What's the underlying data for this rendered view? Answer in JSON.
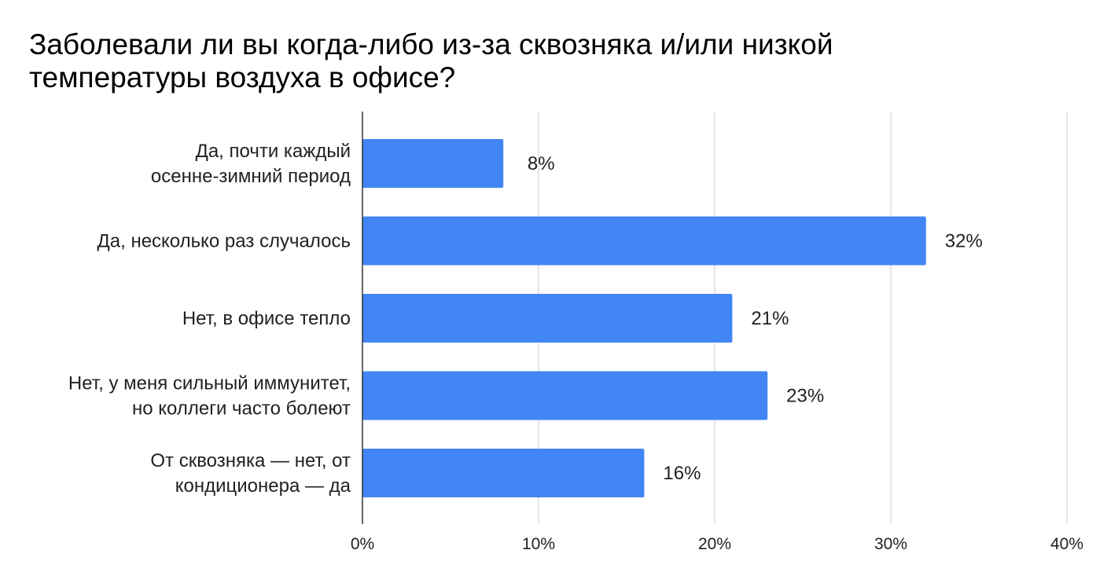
{
  "chart_data": {
    "type": "bar",
    "orientation": "horizontal",
    "title": "Заболевали ли вы когда-либо из-за сквозняка и/или низкой\nтемпературы воздуха в офисе?",
    "categories": [
      "Да, почти каждый\nосенне-зимний период",
      "Да, несколько раз случалось",
      "Нет, в офисе тепло",
      "Нет, у меня сильный иммунитет,\nно коллеги часто болеют",
      "От сквозняка — нет, от\nкондиционера — да"
    ],
    "values": [
      8,
      32,
      21,
      23,
      16
    ],
    "data_labels": [
      "8%",
      "32%",
      "21%",
      "23%",
      "16%"
    ],
    "xlim": [
      0,
      40
    ],
    "x_ticks": [
      0,
      10,
      20,
      30,
      40
    ],
    "x_tick_labels": [
      "0%",
      "10%",
      "20%",
      "30%",
      "40%"
    ],
    "xlabel": "",
    "ylabel": "",
    "grid": true,
    "legend": "none",
    "colors": {
      "bar": "#4285f4",
      "grid": "#cccccc",
      "axis": "#333333",
      "text": "#202124"
    }
  }
}
